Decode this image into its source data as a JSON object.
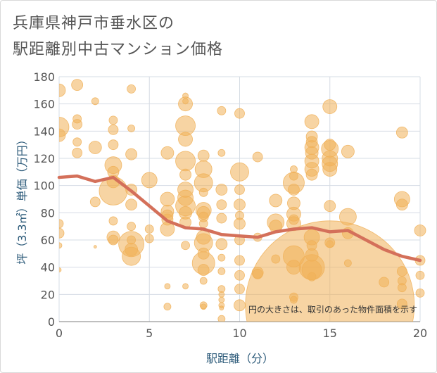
{
  "title_line1": "兵庫県神戸市垂水区の",
  "title_line2": "駅距離別中古マンション価格",
  "note": "円の大きさは、取引のあった物件面積を示す",
  "colors": {
    "bubble": "#f0b058",
    "line": "#d4705a",
    "grid": "#d6dce4",
    "axis_text": "#555555",
    "axis_title": "#2d5b7a"
  },
  "chart_data": {
    "type": "scatter",
    "title": "兵庫県神戸市垂水区の駅距離別中古マンション価格",
    "xlabel": "駅距離（分）",
    "ylabel": "坪（3.3㎡）単価（万円）",
    "xlim": [
      0,
      20
    ],
    "ylim": [
      0,
      180
    ],
    "xticks": [
      "0",
      "5",
      "10",
      "15",
      "20"
    ],
    "yticks": [
      "0",
      "20",
      "40",
      "60",
      "80",
      "100",
      "120",
      "140",
      "160",
      "180"
    ],
    "grid": true,
    "bubble_size_meaning": "取引のあった物件面積",
    "bubbles": [
      {
        "x": 0,
        "y": 170,
        "s": 9
      },
      {
        "x": 0,
        "y": 143,
        "s": 14
      },
      {
        "x": 0,
        "y": 137,
        "s": 9
      },
      {
        "x": 0,
        "y": 65,
        "s": 7
      },
      {
        "x": 0,
        "y": 72,
        "s": 6
      },
      {
        "x": 0,
        "y": 56,
        "s": 4
      },
      {
        "x": 0,
        "y": 38,
        "s": 3
      },
      {
        "x": 1,
        "y": 174,
        "s": 8
      },
      {
        "x": 1,
        "y": 149,
        "s": 6
      },
      {
        "x": 1,
        "y": 145,
        "s": 7
      },
      {
        "x": 1,
        "y": 132,
        "s": 6
      },
      {
        "x": 1,
        "y": 124,
        "s": 7
      },
      {
        "x": 2,
        "y": 162,
        "s": 5
      },
      {
        "x": 2,
        "y": 128,
        "s": 9
      },
      {
        "x": 2,
        "y": 88,
        "s": 7
      },
      {
        "x": 2,
        "y": 55,
        "s": 2
      },
      {
        "x": 3,
        "y": 148,
        "s": 6
      },
      {
        "x": 3,
        "y": 141,
        "s": 7
      },
      {
        "x": 3,
        "y": 130,
        "s": 7
      },
      {
        "x": 3,
        "y": 115,
        "s": 12
      },
      {
        "x": 3,
        "y": 110,
        "s": 8
      },
      {
        "x": 3,
        "y": 103,
        "s": 9
      },
      {
        "x": 3,
        "y": 96,
        "s": 20
      },
      {
        "x": 3,
        "y": 74,
        "s": 6
      },
      {
        "x": 3,
        "y": 62,
        "s": 9
      },
      {
        "x": 3,
        "y": 60,
        "s": 7
      },
      {
        "x": 4,
        "y": 171,
        "s": 6
      },
      {
        "x": 4,
        "y": 142,
        "s": 5
      },
      {
        "x": 4,
        "y": 123,
        "s": 8
      },
      {
        "x": 4,
        "y": 97,
        "s": 8
      },
      {
        "x": 4,
        "y": 86,
        "s": 8
      },
      {
        "x": 4,
        "y": 70,
        "s": 6
      },
      {
        "x": 4,
        "y": 57,
        "s": 18
      },
      {
        "x": 4,
        "y": 48,
        "s": 13
      },
      {
        "x": 4,
        "y": 53,
        "s": 9
      },
      {
        "x": 4,
        "y": 60,
        "s": 6
      },
      {
        "x": 5,
        "y": 104,
        "s": 11
      },
      {
        "x": 5,
        "y": 68,
        "s": 6
      },
      {
        "x": 5,
        "y": 61,
        "s": 6
      },
      {
        "x": 6,
        "y": 124,
        "s": 9
      },
      {
        "x": 6,
        "y": 90,
        "s": 10
      },
      {
        "x": 6,
        "y": 81,
        "s": 9
      },
      {
        "x": 6,
        "y": 78,
        "s": 8
      },
      {
        "x": 6,
        "y": 75,
        "s": 8
      },
      {
        "x": 6,
        "y": 68,
        "s": 10
      },
      {
        "x": 6,
        "y": 26,
        "s": 4
      },
      {
        "x": 6,
        "y": 11,
        "s": 5
      },
      {
        "x": 7,
        "y": 166,
        "s": 4
      },
      {
        "x": 7,
        "y": 162,
        "s": 4
      },
      {
        "x": 7,
        "y": 160,
        "s": 10
      },
      {
        "x": 7,
        "y": 144,
        "s": 14
      },
      {
        "x": 7,
        "y": 134,
        "s": 10
      },
      {
        "x": 7,
        "y": 118,
        "s": 14
      },
      {
        "x": 7,
        "y": 108,
        "s": 8
      },
      {
        "x": 7,
        "y": 97,
        "s": 11
      },
      {
        "x": 7,
        "y": 91,
        "s": 11
      },
      {
        "x": 7,
        "y": 85,
        "s": 14
      },
      {
        "x": 7,
        "y": 80,
        "s": 9
      },
      {
        "x": 7,
        "y": 73,
        "s": 8
      },
      {
        "x": 7,
        "y": 56,
        "s": 6
      },
      {
        "x": 7,
        "y": 26,
        "s": 4
      },
      {
        "x": 8,
        "y": 122,
        "s": 8
      },
      {
        "x": 8,
        "y": 112,
        "s": 12
      },
      {
        "x": 8,
        "y": 102,
        "s": 13
      },
      {
        "x": 8,
        "y": 95,
        "s": 6
      },
      {
        "x": 8,
        "y": 82,
        "s": 11
      },
      {
        "x": 8,
        "y": 80,
        "s": 9
      },
      {
        "x": 8,
        "y": 77,
        "s": 7
      },
      {
        "x": 8,
        "y": 72,
        "s": 6
      },
      {
        "x": 8,
        "y": 62,
        "s": 10
      },
      {
        "x": 8,
        "y": 58,
        "s": 13
      },
      {
        "x": 8,
        "y": 50,
        "s": 8
      },
      {
        "x": 8,
        "y": 43,
        "s": 16
      },
      {
        "x": 8,
        "y": 38,
        "s": 8
      },
      {
        "x": 8,
        "y": 30,
        "s": 5
      },
      {
        "x": 8,
        "y": 12,
        "s": 5
      },
      {
        "x": 8,
        "y": 11,
        "s": 4
      },
      {
        "x": 9,
        "y": 155,
        "s": 6
      },
      {
        "x": 9,
        "y": 124,
        "s": 5
      },
      {
        "x": 9,
        "y": 97,
        "s": 8
      },
      {
        "x": 9,
        "y": 86,
        "s": 7
      },
      {
        "x": 9,
        "y": 76,
        "s": 7
      },
      {
        "x": 9,
        "y": 57,
        "s": 8
      },
      {
        "x": 9,
        "y": 47,
        "s": 5
      },
      {
        "x": 9,
        "y": 37,
        "s": 5
      },
      {
        "x": 9,
        "y": 24,
        "s": 5
      },
      {
        "x": 9,
        "y": 20,
        "s": 4
      },
      {
        "x": 9,
        "y": 16,
        "s": 4
      },
      {
        "x": 9,
        "y": 12,
        "s": 4
      },
      {
        "x": 9,
        "y": 10,
        "s": 3
      },
      {
        "x": 9,
        "y": 2,
        "s": 5
      },
      {
        "x": 10,
        "y": 153,
        "s": 7
      },
      {
        "x": 10,
        "y": 110,
        "s": 13
      },
      {
        "x": 10,
        "y": 97,
        "s": 7
      },
      {
        "x": 10,
        "y": 86,
        "s": 8
      },
      {
        "x": 10,
        "y": 78,
        "s": 6
      },
      {
        "x": 10,
        "y": 72,
        "s": 8
      },
      {
        "x": 10,
        "y": 60,
        "s": 7
      },
      {
        "x": 10,
        "y": 45,
        "s": 7
      },
      {
        "x": 10,
        "y": 34,
        "s": 7
      },
      {
        "x": 10,
        "y": 24,
        "s": 7
      },
      {
        "x": 10,
        "y": 12,
        "s": 8
      },
      {
        "x": 11,
        "y": 121,
        "s": 7
      },
      {
        "x": 11,
        "y": 62,
        "s": 6
      },
      {
        "x": 11,
        "y": 36,
        "s": 8
      },
      {
        "x": 11,
        "y": 35,
        "s": 7
      },
      {
        "x": 12,
        "y": 89,
        "s": 9
      },
      {
        "x": 12,
        "y": 73,
        "s": 12
      },
      {
        "x": 12,
        "y": 70,
        "s": 9
      },
      {
        "x": 12,
        "y": 46,
        "s": 6
      },
      {
        "x": 13,
        "y": 112,
        "s": 5
      },
      {
        "x": 13,
        "y": 107,
        "s": 6
      },
      {
        "x": 13,
        "y": 102,
        "s": 15
      },
      {
        "x": 13,
        "y": 97,
        "s": 8
      },
      {
        "x": 13,
        "y": 87,
        "s": 9
      },
      {
        "x": 13,
        "y": 79,
        "s": 10
      },
      {
        "x": 13,
        "y": 75,
        "s": 7
      },
      {
        "x": 13,
        "y": 72,
        "s": 10
      },
      {
        "x": 13,
        "y": 48,
        "s": 15
      },
      {
        "x": 13,
        "y": 40,
        "s": 10
      },
      {
        "x": 13,
        "y": 18,
        "s": 6
      },
      {
        "x": 13,
        "y": 16,
        "s": 5
      },
      {
        "x": 14,
        "y": 147,
        "s": 10
      },
      {
        "x": 14,
        "y": 136,
        "s": 8
      },
      {
        "x": 14,
        "y": 132,
        "s": 8
      },
      {
        "x": 14,
        "y": 128,
        "s": 10
      },
      {
        "x": 14,
        "y": 124,
        "s": 9
      },
      {
        "x": 14,
        "y": 118,
        "s": 10
      },
      {
        "x": 14,
        "y": 112,
        "s": 10
      },
      {
        "x": 14,
        "y": 108,
        "s": 8
      },
      {
        "x": 14,
        "y": 62,
        "s": 11
      },
      {
        "x": 14,
        "y": 56,
        "s": 7
      },
      {
        "x": 14,
        "y": 49,
        "s": 9
      },
      {
        "x": 14,
        "y": 40,
        "s": 18
      },
      {
        "x": 14,
        "y": 38,
        "s": 14
      },
      {
        "x": 14,
        "y": 33,
        "s": 6
      },
      {
        "x": 15,
        "y": 158,
        "s": 10
      },
      {
        "x": 15,
        "y": 130,
        "s": 8
      },
      {
        "x": 15,
        "y": 127,
        "s": 12
      },
      {
        "x": 15,
        "y": 120,
        "s": 11
      },
      {
        "x": 15,
        "y": 116,
        "s": 11
      },
      {
        "x": 15,
        "y": 112,
        "s": 10
      },
      {
        "x": 15,
        "y": 85,
        "s": 8
      },
      {
        "x": 15,
        "y": 58,
        "s": 7
      },
      {
        "x": 15,
        "y": 57,
        "s": 5
      },
      {
        "x": 15,
        "y": 12,
        "s": 120
      },
      {
        "x": 16,
        "y": 125,
        "s": 9
      },
      {
        "x": 16,
        "y": 77,
        "s": 12
      },
      {
        "x": 16,
        "y": 65,
        "s": 8
      },
      {
        "x": 16,
        "y": 43,
        "s": 5
      },
      {
        "x": 18,
        "y": 29,
        "s": 7
      },
      {
        "x": 19,
        "y": 139,
        "s": 8
      },
      {
        "x": 19,
        "y": 90,
        "s": 11
      },
      {
        "x": 19,
        "y": 86,
        "s": 8
      },
      {
        "x": 19,
        "y": 37,
        "s": 7
      },
      {
        "x": 19,
        "y": 30,
        "s": 6
      },
      {
        "x": 19,
        "y": 25,
        "s": 6
      },
      {
        "x": 19,
        "y": 13,
        "s": 7
      },
      {
        "x": 20,
        "y": 67,
        "s": 8
      },
      {
        "x": 20,
        "y": 45,
        "s": 7
      },
      {
        "x": 20,
        "y": 34,
        "s": 6
      },
      {
        "x": 20,
        "y": 21,
        "s": 6
      }
    ],
    "series": [
      {
        "type": "line",
        "x": [
          0,
          1,
          2,
          3,
          4,
          5,
          6,
          7,
          8,
          9,
          10,
          11,
          12,
          13,
          14,
          15,
          16,
          17,
          18,
          19,
          20
        ],
        "values": [
          106,
          107,
          103,
          106,
          96,
          85,
          74,
          69,
          68,
          64,
          63,
          62,
          66,
          68,
          69,
          66,
          67,
          60,
          53,
          48,
          45
        ]
      }
    ]
  }
}
